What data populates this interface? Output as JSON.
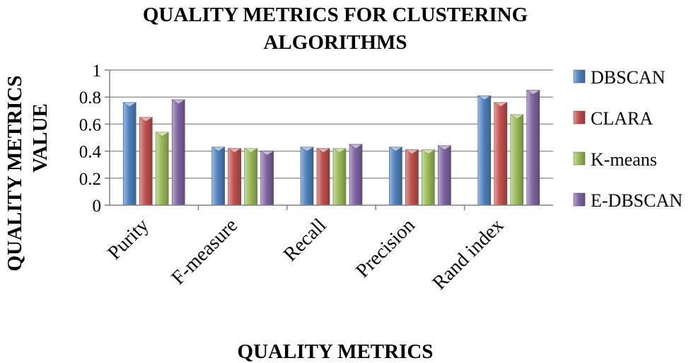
{
  "chart_data": {
    "type": "bar",
    "title": "QUALITY METRICS FOR CLUSTERING ALGORITHMS",
    "title_lines": [
      "QUALITY METRICS FOR CLUSTERING",
      "ALGORITHMS"
    ],
    "xlabel": "QUALITY METRICS",
    "ylabel": "QUALITY METRICS VALUE",
    "ylabel_lines": [
      "QUALITY METRICS",
      "VALUE"
    ],
    "categories": [
      "Purity",
      "F-measure",
      "Recall",
      "Precision",
      "Rand index"
    ],
    "series": [
      {
        "name": "DBSCAN",
        "color": "#4f81bd",
        "values": [
          0.76,
          0.43,
          0.43,
          0.43,
          0.81
        ]
      },
      {
        "name": "CLARA",
        "color": "#c0504d",
        "values": [
          0.65,
          0.42,
          0.42,
          0.41,
          0.76
        ]
      },
      {
        "name": "K-means",
        "color": "#9bbb59",
        "values": [
          0.54,
          0.42,
          0.42,
          0.41,
          0.67
        ]
      },
      {
        "name": "E-DBSCAN",
        "color": "#8064a2",
        "values": [
          0.78,
          0.4,
          0.45,
          0.44,
          0.85
        ]
      }
    ],
    "ylim": [
      0,
      1
    ],
    "yticks": [
      0,
      0.2,
      0.4,
      0.6,
      0.8,
      1
    ],
    "ytick_labels": [
      "0",
      "0.2",
      "0.4",
      "0.6",
      "0.8",
      "1"
    ],
    "grid": true,
    "legend_position": "right"
  }
}
